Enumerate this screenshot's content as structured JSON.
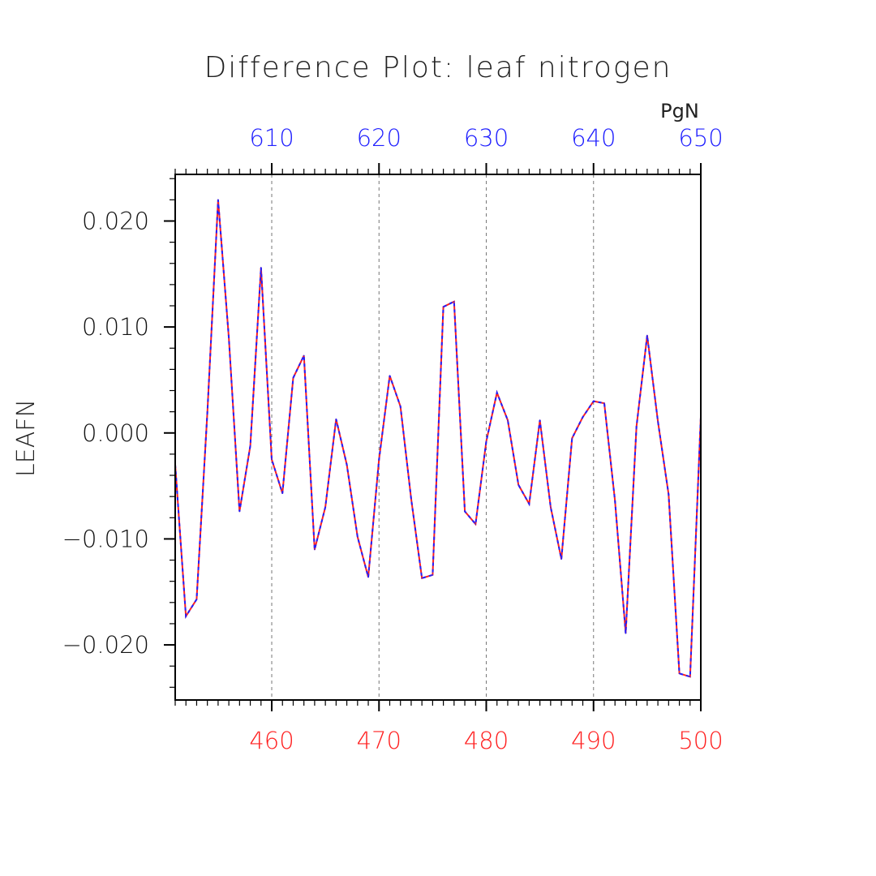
{
  "chart_data": {
    "type": "line",
    "title": "Difference Plot: leaf nitrogen",
    "ylabel": "LEAFN",
    "top_axis_units": "PgN",
    "xlim": [
      451,
      500
    ],
    "ylim": [
      -0.0252,
      0.0244
    ],
    "grid": "vertical dashed at major x ticks",
    "bottom_axis": {
      "color": "#ff2020",
      "ticks": [
        460,
        470,
        480,
        490,
        500
      ],
      "tick_labels": [
        "460",
        "470",
        "480",
        "490",
        "500"
      ]
    },
    "top_axis": {
      "color": "#2020ff",
      "ticks": [
        460,
        470,
        480,
        490,
        500
      ],
      "tick_labels": [
        "610",
        "620",
        "630",
        "640",
        "650"
      ]
    },
    "y_ticks": [
      0.02,
      0.01,
      0.0,
      -0.01,
      -0.02
    ],
    "y_tick_labels": [
      "0.020",
      "0.010",
      "0.000",
      "−0.010",
      "−0.020"
    ],
    "x": [
      451,
      452,
      453,
      454,
      455,
      456,
      457,
      458,
      459,
      460,
      461,
      462,
      463,
      464,
      465,
      466,
      467,
      468,
      469,
      470,
      471,
      472,
      473,
      474,
      475,
      476,
      477,
      478,
      479,
      480,
      481,
      482,
      483,
      484,
      485,
      486,
      487,
      488,
      489,
      490,
      491,
      492,
      493,
      494,
      495,
      496,
      497,
      498,
      499,
      500
    ],
    "series": [
      {
        "color": "#ff2020",
        "style": "solid",
        "values": [
          -0.003,
          -0.0173,
          -0.0157,
          0.002,
          0.022,
          0.009,
          -0.0074,
          -0.0012,
          0.0156,
          -0.0025,
          -0.0057,
          0.0052,
          0.0073,
          -0.011,
          -0.007,
          0.0013,
          -0.003,
          -0.0098,
          -0.0136,
          -0.0025,
          0.0054,
          0.0025,
          -0.0062,
          -0.0137,
          -0.0134,
          0.0119,
          0.0124,
          -0.0074,
          -0.0086,
          -0.0008,
          0.0038,
          0.0012,
          -0.0049,
          -0.0067,
          0.0012,
          -0.007,
          -0.0119,
          -0.0005,
          0.0015,
          0.003,
          0.0028,
          -0.0064,
          -0.0189,
          0.0006,
          0.0092,
          0.0011,
          -0.0058,
          -0.0227,
          -0.023,
          0.0015
        ]
      },
      {
        "color": "#2020ff",
        "style": "dashed",
        "values": [
          -0.003,
          -0.0173,
          -0.0157,
          0.002,
          0.022,
          0.009,
          -0.0074,
          -0.0012,
          0.0156,
          -0.0025,
          -0.0057,
          0.0052,
          0.0073,
          -0.011,
          -0.007,
          0.0013,
          -0.003,
          -0.0098,
          -0.0136,
          -0.0025,
          0.0054,
          0.0025,
          -0.0062,
          -0.0137,
          -0.0134,
          0.0119,
          0.0124,
          -0.0074,
          -0.0086,
          -0.0008,
          0.0038,
          0.0012,
          -0.0049,
          -0.0067,
          0.0012,
          -0.007,
          -0.0119,
          -0.0005,
          0.0015,
          0.003,
          0.0028,
          -0.0064,
          -0.0189,
          0.0006,
          0.0092,
          0.0011,
          -0.0058,
          -0.0227,
          -0.023,
          0.0015
        ]
      }
    ]
  }
}
